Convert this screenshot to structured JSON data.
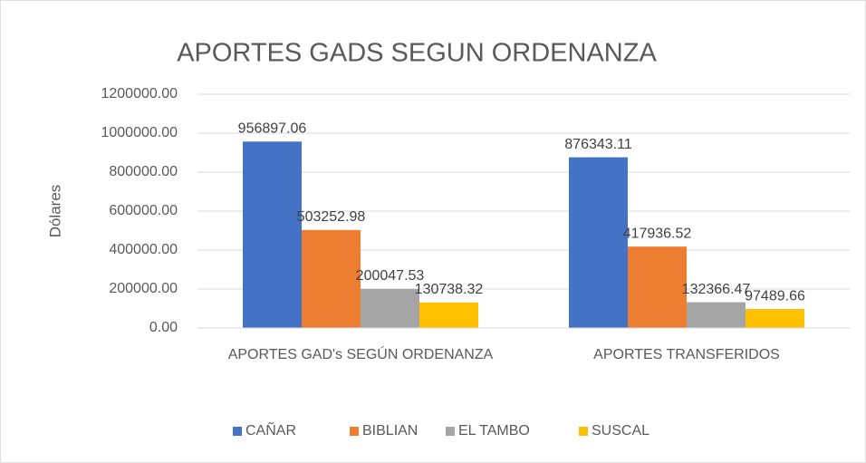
{
  "chart_data": {
    "type": "bar",
    "title": "APORTES GADS SEGUN ORDENANZA",
    "y_label": "Dólares",
    "categories": [
      "APORTES GAD's  SEGÚN ORDENANZA",
      "APORTES TRANSFERIDOS"
    ],
    "series": [
      {
        "name": "CAÑAR",
        "color": "#4472c4",
        "values": [
          956897.06,
          876343.11
        ]
      },
      {
        "name": "BIBLIAN",
        "color": "#ed7d31",
        "values": [
          503252.98,
          417936.52
        ]
      },
      {
        "name": "EL TAMBO",
        "color": "#a5a5a5",
        "values": [
          200047.53,
          132366.47
        ]
      },
      {
        "name": "SUSCAL",
        "color": "#ffc000",
        "values": [
          130738.32,
          97489.66
        ]
      }
    ],
    "ylim": [
      0,
      1200000
    ],
    "yticks": [
      {
        "value": 0,
        "label": "0.00"
      },
      {
        "value": 200000,
        "label": "200000.00"
      },
      {
        "value": 400000,
        "label": "400000.00"
      },
      {
        "value": 600000,
        "label": "600000.00"
      },
      {
        "value": 800000,
        "label": "800000.00"
      },
      {
        "value": 1000000,
        "label": "1000000.00"
      },
      {
        "value": 1200000,
        "label": "1200000.00"
      }
    ],
    "grid": true,
    "legend": "bottom"
  }
}
